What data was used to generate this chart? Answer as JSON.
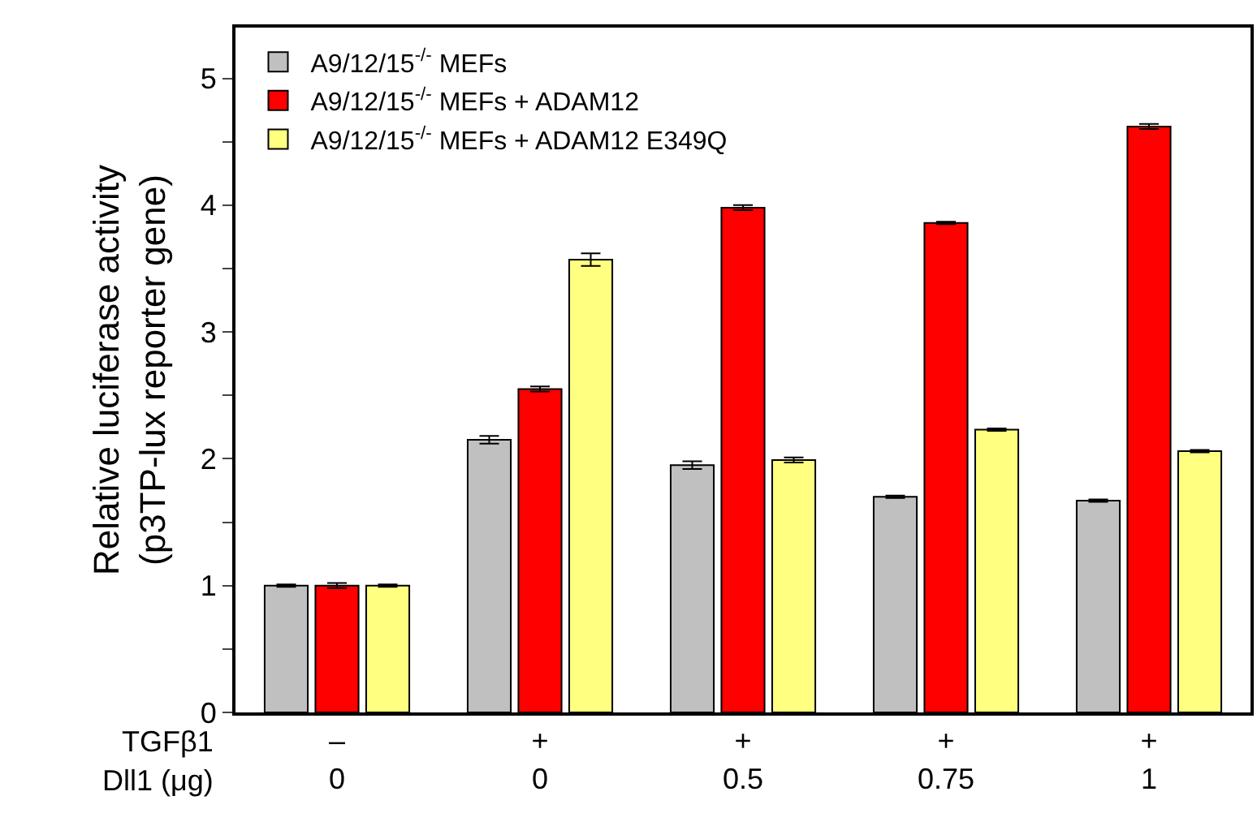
{
  "chart_data": {
    "type": "bar",
    "ylabel": "Relative luciferase activity\n(p3TP-lux reporter gene)",
    "categories": [
      "–\n0",
      "+\n0",
      "+\n0.5",
      "+\n0.75",
      "+\n1"
    ],
    "series": [
      {
        "name": "A9/12/15$^{-/-}$ MEFs",
        "color": "#c0c0c0",
        "values": [
          1.0,
          2.15,
          1.95,
          1.7,
          1.67
        ],
        "errors": [
          0.01,
          0.03,
          0.03,
          0.01,
          0.01
        ]
      },
      {
        "name": "A9/12/15$^{-/-}$ MEFs + ADAM12",
        "color": "#ff0000",
        "values": [
          1.0,
          2.55,
          3.98,
          3.86,
          4.62
        ],
        "errors": [
          0.02,
          0.02,
          0.02,
          0.01,
          0.02
        ]
      },
      {
        "name": "A9/12/15$^{-/-}$ MEFs + ADAM12 E349Q",
        "color": "#ffff80",
        "values": [
          1.0,
          3.57,
          1.99,
          2.23,
          2.06
        ],
        "errors": [
          0.01,
          0.05,
          0.02,
          0.01,
          0.01
        ]
      }
    ],
    "annotations": [
      "TGFβ1",
      "Dll1 (μg)"
    ],
    "ylim": [
      0,
      5.4
    ],
    "yticks": [
      0,
      {
        "value": 0.5,
        "label": null
      },
      1,
      {
        "value": 1.5,
        "label": null
      },
      2,
      {
        "value": 2.5,
        "label": null
      },
      3,
      {
        "value": 3.5,
        "label": null
      },
      4,
      {
        "value": 4.5,
        "label": null
      },
      5
    ],
    "legend": "top left"
  }
}
